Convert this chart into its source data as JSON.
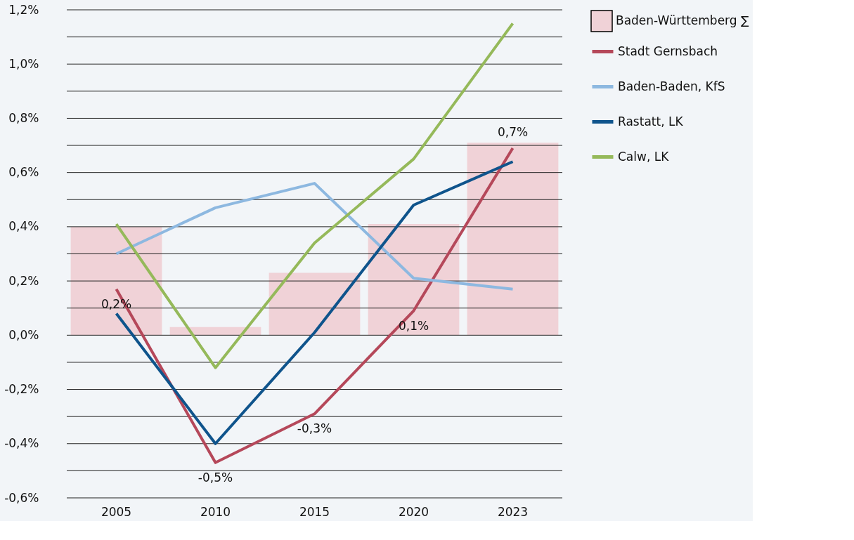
{
  "chart_data": {
    "type": "line",
    "categories": [
      "2005",
      "2010",
      "2015",
      "2020",
      "2023"
    ],
    "series": [
      {
        "name": "Baden-Württemberg ∑",
        "type": "bar",
        "color": "#f0d2d7",
        "values": [
          0.4,
          0.03,
          0.23,
          0.41,
          0.71
        ]
      },
      {
        "name": "Stadt Gernsbach",
        "color": "#b5485a",
        "values": [
          0.17,
          -0.47,
          -0.29,
          0.09,
          0.69
        ],
        "value_labels": [
          "0,2%",
          "-0,5%",
          "-0,3%",
          "0,1%",
          "0,7%"
        ]
      },
      {
        "name": "Baden-Baden, KfS",
        "color": "#8db8e0",
        "values": [
          0.3,
          0.47,
          0.56,
          0.21,
          0.17
        ]
      },
      {
        "name": "Rastatt, LK",
        "color": "#0f548c",
        "values": [
          0.08,
          -0.4,
          0.01,
          0.48,
          0.64
        ]
      },
      {
        "name": "Calw, LK",
        "color": "#95b95a",
        "values": [
          0.41,
          -0.12,
          0.34,
          0.65,
          1.15
        ]
      }
    ],
    "ylim": [
      -0.6,
      1.2
    ],
    "yticks": [
      {
        "value": -0.6,
        "label": "-0,6%"
      },
      {
        "value": -0.5,
        "label": null
      },
      {
        "value": -0.4,
        "label": "-0,4%"
      },
      {
        "value": -0.3,
        "label": null
      },
      {
        "value": -0.2,
        "label": "-0,2%"
      },
      {
        "value": -0.1,
        "label": null
      },
      {
        "value": 0,
        "label": "0,0%"
      },
      {
        "value": 0.1,
        "label": null
      },
      {
        "value": 0.2,
        "label": "0,2%"
      },
      {
        "value": 0.3,
        "label": null
      },
      {
        "value": 0.4,
        "label": "0,4%"
      },
      {
        "value": 0.5,
        "label": null
      },
      {
        "value": 0.6,
        "label": "0,6%"
      },
      {
        "value": 0.7,
        "label": null
      },
      {
        "value": 0.8,
        "label": "0,8%"
      },
      {
        "value": 0.9,
        "label": null
      },
      {
        "value": 1.0,
        "label": "1,0%"
      },
      {
        "value": 1.1,
        "label": null
      },
      {
        "value": 1.2,
        "label": "1,2%"
      }
    ],
    "grid": "y",
    "legend": "right",
    "marker": "none",
    "line_style": "solid"
  }
}
